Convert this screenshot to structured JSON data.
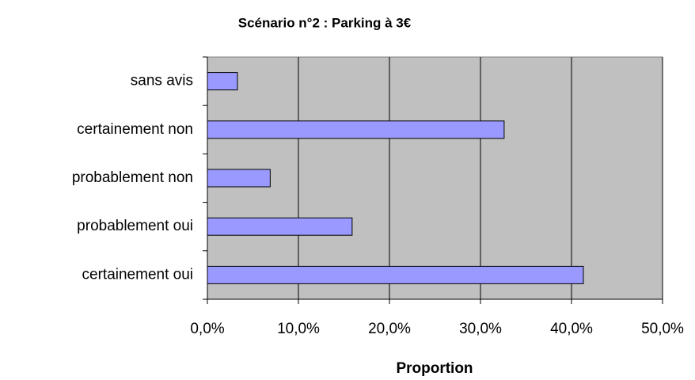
{
  "chart_data": {
    "type": "bar",
    "orientation": "horizontal",
    "title": "Scénario n°2 : Parking à 3€",
    "xlabel": "Proportion",
    "categories": [
      "sans avis",
      "certainement non",
      "probablement non",
      "probablement oui",
      "certainement oui"
    ],
    "values": [
      3.3,
      32.6,
      6.9,
      15.9,
      41.3
    ],
    "color": "#9999ff",
    "xlim": [
      0,
      50
    ],
    "xticks": [
      {
        "value": 0,
        "label": "0,0%"
      },
      {
        "value": 10,
        "label": "10,0%"
      },
      {
        "value": 20,
        "label": "20,0%"
      },
      {
        "value": 30,
        "label": "30,0%"
      },
      {
        "value": 40,
        "label": "40,0%"
      },
      {
        "value": 50,
        "label": "50,0%"
      }
    ],
    "grid": true
  }
}
